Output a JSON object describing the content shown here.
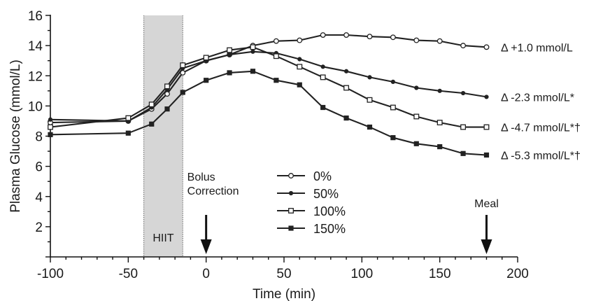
{
  "chart_data": {
    "type": "line",
    "title": "",
    "xlabel": "Time (min)",
    "ylabel": "Plasma Glucose (mmol/L)",
    "xlim": [
      -100,
      200
    ],
    "ylim": [
      0,
      16
    ],
    "xticks": [
      "-100",
      "-50",
      "0",
      "50",
      "100",
      "150",
      "200"
    ],
    "yticks": [
      "2",
      "4",
      "6",
      "8",
      "10",
      "12",
      "14",
      "16"
    ],
    "grid": false,
    "legend_position": "center",
    "shaded_region": {
      "label": "HIIT",
      "x_start": -40,
      "x_end": -15
    },
    "annotations": [
      {
        "text_lines": [
          "Bolus",
          "Correction"
        ],
        "x": 0
      },
      {
        "text_lines": [
          "Meal"
        ],
        "x": 180
      }
    ],
    "series": [
      {
        "name": "0%",
        "marker": "open-circle",
        "end_label": "Δ  +1.0 mmol/L",
        "points": [
          [
            -100,
            8.9
          ],
          [
            -50,
            9.0
          ],
          [
            -35,
            9.8
          ],
          [
            -25,
            10.8
          ],
          [
            -15,
            12.2
          ],
          [
            0,
            13.0
          ],
          [
            15,
            13.4
          ],
          [
            30,
            14.0
          ],
          [
            45,
            14.3
          ],
          [
            60,
            14.35
          ],
          [
            75,
            14.7
          ],
          [
            90,
            14.7
          ],
          [
            105,
            14.6
          ],
          [
            120,
            14.55
          ],
          [
            135,
            14.35
          ],
          [
            150,
            14.3
          ],
          [
            165,
            14.0
          ],
          [
            180,
            13.9
          ]
        ]
      },
      {
        "name": "50%",
        "marker": "filled-dot",
        "end_label": "Δ  -2.3 mmol/L*",
        "points": [
          [
            -100,
            9.1
          ],
          [
            -50,
            9.0
          ],
          [
            -35,
            9.9
          ],
          [
            -25,
            11.1
          ],
          [
            -15,
            12.5
          ],
          [
            0,
            13.0
          ],
          [
            15,
            13.4
          ],
          [
            30,
            13.6
          ],
          [
            45,
            13.5
          ],
          [
            60,
            13.1
          ],
          [
            75,
            12.6
          ],
          [
            90,
            12.3
          ],
          [
            105,
            11.9
          ],
          [
            120,
            11.6
          ],
          [
            135,
            11.2
          ],
          [
            150,
            11.0
          ],
          [
            165,
            10.85
          ],
          [
            180,
            10.6
          ]
        ]
      },
      {
        "name": "100%",
        "marker": "open-square",
        "end_label": "Δ  -4.7 mmol/L*†",
        "points": [
          [
            -100,
            8.6
          ],
          [
            -50,
            9.2
          ],
          [
            -35,
            10.1
          ],
          [
            -25,
            11.3
          ],
          [
            -15,
            12.7
          ],
          [
            0,
            13.2
          ],
          [
            15,
            13.7
          ],
          [
            30,
            13.9
          ],
          [
            45,
            13.3
          ],
          [
            60,
            12.6
          ],
          [
            75,
            11.9
          ],
          [
            90,
            11.2
          ],
          [
            105,
            10.4
          ],
          [
            120,
            9.9
          ],
          [
            135,
            9.3
          ],
          [
            150,
            8.9
          ],
          [
            165,
            8.6
          ],
          [
            180,
            8.6
          ]
        ]
      },
      {
        "name": "150%",
        "marker": "filled-square",
        "end_label": "Δ  -5.3 mmol/L*†",
        "points": [
          [
            -100,
            8.1
          ],
          [
            -50,
            8.2
          ],
          [
            -35,
            8.8
          ],
          [
            -25,
            9.8
          ],
          [
            -15,
            10.9
          ],
          [
            0,
            11.7
          ],
          [
            15,
            12.2
          ],
          [
            30,
            12.3
          ],
          [
            45,
            11.7
          ],
          [
            60,
            11.4
          ],
          [
            75,
            9.9
          ],
          [
            90,
            9.2
          ],
          [
            105,
            8.6
          ],
          [
            120,
            7.9
          ],
          [
            135,
            7.5
          ],
          [
            150,
            7.3
          ],
          [
            165,
            6.85
          ],
          [
            180,
            6.75
          ]
        ]
      }
    ]
  }
}
